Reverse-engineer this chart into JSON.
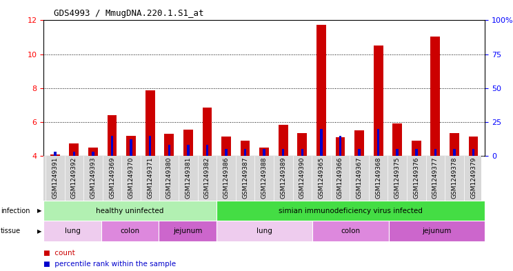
{
  "title": "GDS4993 / MmugDNA.220.1.S1_at",
  "samples": [
    "GSM1249391",
    "GSM1249392",
    "GSM1249393",
    "GSM1249369",
    "GSM1249370",
    "GSM1249371",
    "GSM1249380",
    "GSM1249381",
    "GSM1249382",
    "GSM1249386",
    "GSM1249387",
    "GSM1249388",
    "GSM1249389",
    "GSM1249390",
    "GSM1249365",
    "GSM1249366",
    "GSM1249367",
    "GSM1249368",
    "GSM1249375",
    "GSM1249376",
    "GSM1249377",
    "GSM1249378",
    "GSM1249379"
  ],
  "counts": [
    4.1,
    4.75,
    4.5,
    6.4,
    5.2,
    7.85,
    5.3,
    5.55,
    6.85,
    5.15,
    4.9,
    4.5,
    5.85,
    5.35,
    11.75,
    5.1,
    5.5,
    10.5,
    5.9,
    4.9,
    11.05,
    5.35,
    5.15
  ],
  "percentiles": [
    3,
    3,
    3,
    15,
    12,
    15,
    8,
    8,
    8,
    5,
    5,
    5,
    5,
    5,
    20,
    15,
    5,
    20,
    5,
    5,
    5,
    5,
    5
  ],
  "infection_groups": [
    {
      "label": "healthy uninfected",
      "start": 0,
      "end": 9,
      "color": "#b2f0b2"
    },
    {
      "label": "simian immunodeficiency virus infected",
      "start": 9,
      "end": 23,
      "color": "#44dd44"
    }
  ],
  "tissue_groups": [
    {
      "label": "lung",
      "start": 0,
      "end": 3,
      "color": "#eeccee"
    },
    {
      "label": "colon",
      "start": 3,
      "end": 6,
      "color": "#dd88dd"
    },
    {
      "label": "jejunum",
      "start": 6,
      "end": 9,
      "color": "#cc66cc"
    },
    {
      "label": "lung",
      "start": 9,
      "end": 14,
      "color": "#eeccee"
    },
    {
      "label": "colon",
      "start": 14,
      "end": 18,
      "color": "#dd88dd"
    },
    {
      "label": "jejunum",
      "start": 18,
      "end": 23,
      "color": "#cc66cc"
    }
  ],
  "ylim_left": [
    4,
    12
  ],
  "ylim_right": [
    0,
    100
  ],
  "yticks_left": [
    4,
    6,
    8,
    10,
    12
  ],
  "yticks_right": [
    0,
    25,
    50,
    75,
    100
  ],
  "bar_color": "#cc0000",
  "percentile_color": "#0000cc",
  "plot_bg_color": "#ffffff",
  "label_bg_color": "#d8d8d8"
}
